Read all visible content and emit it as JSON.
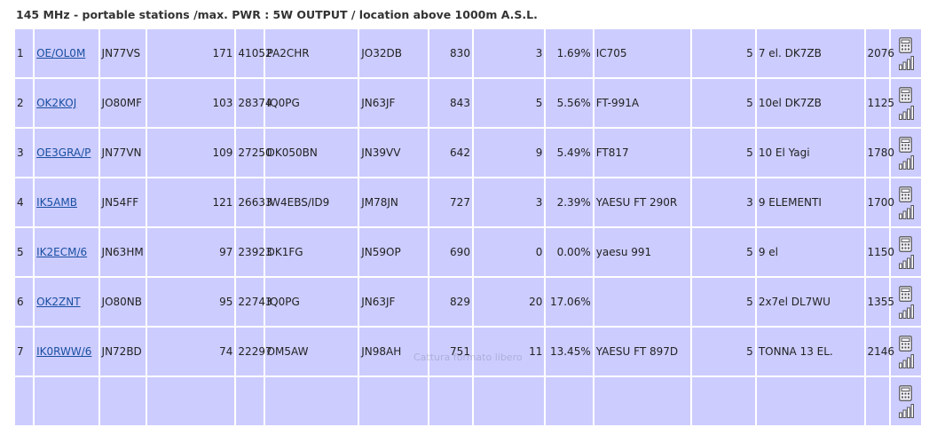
{
  "page": {
    "title": "145 MHz - portable stations /max. PWR : 5W OUTPUT / location above 1000m A.S.L.",
    "watermark": "Cattura formato libero"
  },
  "table": {
    "rows": [
      {
        "rank": "1",
        "call": "OE/OL0M",
        "locator": "JN77VS",
        "qsos": "171",
        "points": "41052",
        "odx_call": "PA2CHR",
        "odx_locator": "JO32DB",
        "odx_km": "830",
        "errors": "3",
        "error_pct": "1.69%",
        "rig": "IC705",
        "power": "5",
        "antenna": "7 el. DK7ZB",
        "asl": "2076"
      },
      {
        "rank": "2",
        "call": "OK2KOJ",
        "locator": "JO80MF",
        "qsos": "103",
        "points": "28374",
        "odx_call": "IQ0PG",
        "odx_locator": "JN63JF",
        "odx_km": "843",
        "errors": "5",
        "error_pct": "5.56%",
        "rig": "FT-991A",
        "power": "5",
        "antenna": "10el DK7ZB",
        "asl": "1125"
      },
      {
        "rank": "3",
        "call": "OE3GRA/P",
        "locator": "JN77VN",
        "qsos": "109",
        "points": "27250",
        "odx_call": "DK050BN",
        "odx_locator": "JN39VV",
        "odx_km": "642",
        "errors": "9",
        "error_pct": "5.49%",
        "rig": "FT817",
        "power": "5",
        "antenna": "10 El Yagi",
        "asl": "1780"
      },
      {
        "rank": "4",
        "call": "IK5AMB",
        "locator": "JN54FF",
        "qsos": "121",
        "points": "26633",
        "odx_call": "IW4EBS/ID9",
        "odx_locator": "JM78JN",
        "odx_km": "727",
        "errors": "3",
        "error_pct": "2.39%",
        "rig": "YAESU FT 290R",
        "power": "3",
        "antenna": "9 ELEMENTI",
        "asl": "1700"
      },
      {
        "rank": "5",
        "call": "IK2ECM/6",
        "locator": "JN63HM",
        "qsos": "97",
        "points": "23923",
        "odx_call": "DK1FG",
        "odx_locator": "JN59OP",
        "odx_km": "690",
        "errors": "0",
        "error_pct": "0.00%",
        "rig": "yaesu 991",
        "power": "5",
        "antenna": "9 el",
        "asl": "1150"
      },
      {
        "rank": "6",
        "call": "OK2ZNT",
        "locator": "JO80NB",
        "qsos": "95",
        "points": "22743",
        "odx_call": "IQ0PG",
        "odx_locator": "JN63JF",
        "odx_km": "829",
        "errors": "20",
        "error_pct": "17.06%",
        "rig": "",
        "power": "5",
        "antenna": "2x7el DL7WU",
        "asl": "1355"
      },
      {
        "rank": "7",
        "call": "IK0RWW/6",
        "locator": "JN72BD",
        "qsos": "74",
        "points": "22297",
        "odx_call": "OM5AW",
        "odx_locator": "JN98AH",
        "odx_km": "751",
        "errors": "11",
        "error_pct": "13.45%",
        "rig": "YAESU FT 897D",
        "power": "5",
        "antenna": "TONNA 13 EL.",
        "asl": "2146"
      },
      {
        "rank": "",
        "call": "",
        "locator": "",
        "qsos": "",
        "points": "",
        "odx_call": "",
        "odx_locator": "",
        "odx_km": "",
        "errors": "",
        "error_pct": "",
        "rig": "",
        "power": "",
        "antenna": "",
        "asl": ""
      }
    ],
    "icons": {
      "top": "calculator-icon",
      "bottom": "bar-chart-icon"
    }
  },
  "colors": {
    "row_bg": "#ccccff",
    "link": "#1a4fa0",
    "icon": "#555555"
  }
}
